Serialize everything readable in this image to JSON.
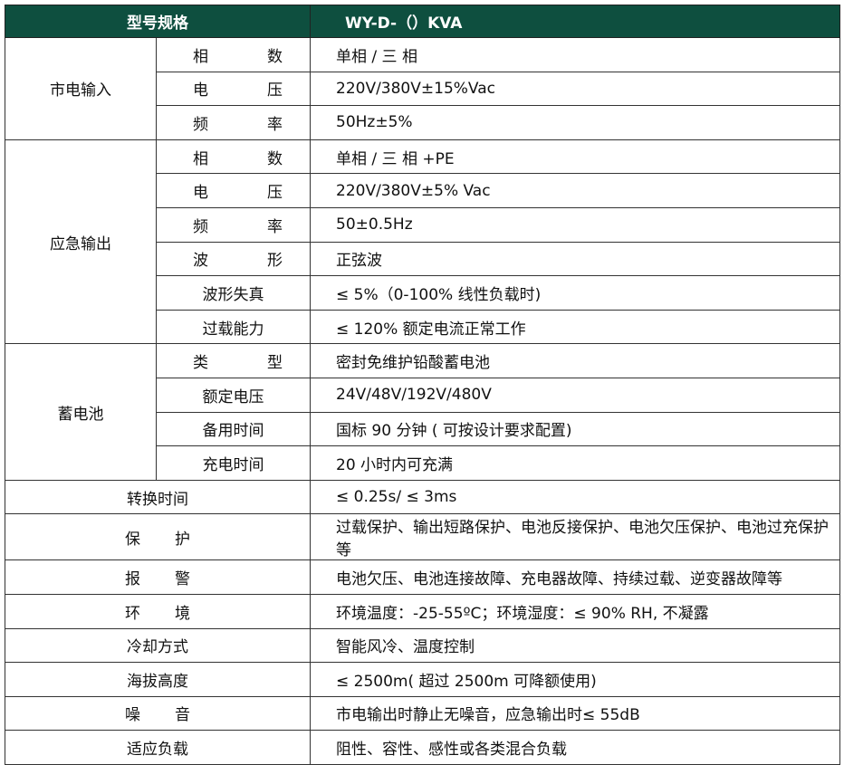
{
  "header": {
    "label": "型号规格",
    "model": "WY-D-（）KVA"
  },
  "groups": [
    {
      "name": "市电输入",
      "rows": [
        {
          "k": [
            "相",
            "数"
          ],
          "v": "单相 / 三 相"
        },
        {
          "k": [
            "电",
            "压"
          ],
          "v": "220V/380V±15%Vac"
        },
        {
          "k": [
            "频",
            "率"
          ],
          "v": "50Hz±5%"
        }
      ]
    },
    {
      "name": "应急输出",
      "rows": [
        {
          "k": [
            "相",
            "数"
          ],
          "v": "单相 / 三 相 +PE"
        },
        {
          "k": [
            "电",
            "压"
          ],
          "v": "220V/380V±5% Vac"
        },
        {
          "k": [
            "频",
            "率"
          ],
          "v": "50±0.5Hz"
        },
        {
          "k": [
            "波",
            "形"
          ],
          "v": "正弦波"
        },
        {
          "k": [
            "波形失真"
          ],
          "v": "≤ 5%（0-100% 线性负载时)"
        },
        {
          "k": [
            "过载能力"
          ],
          "v": "≤ 120% 额定电流正常工作"
        }
      ]
    },
    {
      "name": "蓄电池",
      "rows": [
        {
          "k": [
            "类",
            "型"
          ],
          "v": "密封免维护铅酸蓄电池"
        },
        {
          "k": [
            "额定电压"
          ],
          "v": "24V/48V/192V/480V"
        },
        {
          "k": [
            "备用时间"
          ],
          "v": "国标 90 分钟 ( 可按设计要求配置)"
        },
        {
          "k": [
            "充电时间"
          ],
          "v": "20 小时内可充满"
        }
      ]
    }
  ],
  "single": [
    {
      "k": [
        "转换时间"
      ],
      "v": "≤ 0.25s/ ≤ 3ms"
    },
    {
      "k": [
        "保",
        "护"
      ],
      "v": "过载保护、输出短路保护、电池反接保护、电池欠压保护、电池过充保护等"
    },
    {
      "k": [
        "报",
        "警"
      ],
      "v": "电池欠压、电池连接故障、充电器故障、持续过载、逆变器故障等"
    },
    {
      "k": [
        "环",
        "境"
      ],
      "v": "环境温度：-25-55ºC；环境湿度：≤ 90% RH, 不凝露"
    },
    {
      "k": [
        "冷却方式"
      ],
      "v": "智能风冷、温度控制"
    },
    {
      "k": [
        "海拔高度"
      ],
      "v": "≤ 2500m( 超过  2500m 可降额使用)"
    },
    {
      "k": [
        "噪",
        "音"
      ],
      "v": "市电输出时静止无噪音，应急输出时≤ 55dB"
    },
    {
      "k": [
        "适应负载"
      ],
      "v": "阻性、容性、感性或各类混合负载"
    }
  ]
}
